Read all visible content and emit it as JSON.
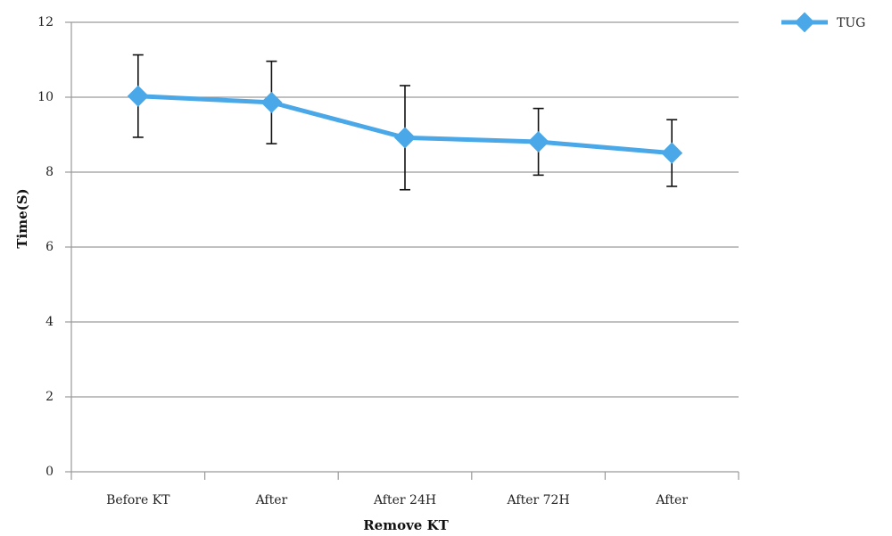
{
  "chart_data": {
    "type": "line",
    "categories": [
      "Before KT",
      "After",
      "After 24H",
      "After 72H",
      "After"
    ],
    "series": [
      {
        "name": "TUG",
        "values": [
          10.03,
          9.86,
          8.92,
          8.81,
          8.51
        ],
        "error_low": [
          8.93,
          8.76,
          7.53,
          7.92,
          7.62
        ],
        "error_high": [
          11.13,
          10.96,
          10.31,
          9.7,
          9.4
        ],
        "color": "#4aa8e8"
      }
    ],
    "xlabel": "Remove KT",
    "ylabel": "Time(S)",
    "ylim": [
      0,
      12
    ],
    "yticks": [
      0,
      2,
      4,
      6,
      8,
      10,
      12
    ],
    "grid": true,
    "legend": "top-right"
  }
}
